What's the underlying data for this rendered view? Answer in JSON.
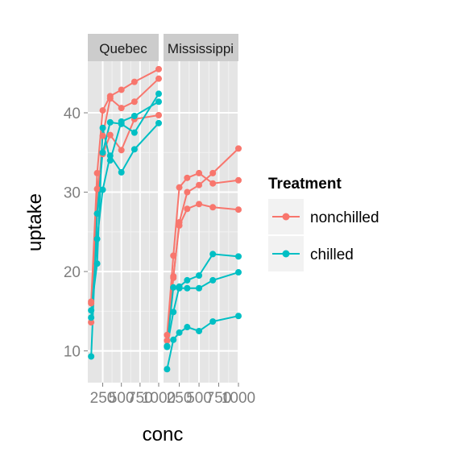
{
  "chart_data": {
    "type": "line",
    "xlabel": "conc",
    "ylabel": "uptake",
    "xlim": [
      50,
      1000
    ],
    "ylim": [
      6,
      46.5
    ],
    "x_ticks": [
      250,
      500,
      750,
      1000
    ],
    "x_tick_labels": [
      "250",
      "500",
      "750",
      "1000"
    ],
    "y_ticks": [
      10,
      20,
      30,
      40
    ],
    "y_tick_labels": [
      "10",
      "20",
      "30",
      "40"
    ],
    "legend": {
      "title": "Treatment",
      "position": "right",
      "entries": [
        {
          "label": "nonchilled",
          "color": "#F8766D"
        },
        {
          "label": "chilled",
          "color": "#00BFC4"
        }
      ]
    },
    "background": "#e5e5e5",
    "gridline_color": "#ffffff",
    "strip_color": "#cccccc",
    "x": [
      95,
      175,
      250,
      350,
      500,
      675,
      1000
    ],
    "panels": [
      {
        "strip": "Quebec",
        "series": [
          {
            "treatment": "nonchilled",
            "values": [
              16.0,
              30.4,
              34.8,
              37.2,
              35.3,
              39.2,
              39.7
            ]
          },
          {
            "treatment": "nonchilled",
            "values": [
              13.6,
              27.3,
              37.1,
              41.8,
              40.6,
              41.4,
              44.3
            ]
          },
          {
            "treatment": "nonchilled",
            "values": [
              16.2,
              32.4,
              40.3,
              42.1,
              42.9,
              43.9,
              45.5
            ]
          },
          {
            "treatment": "chilled",
            "values": [
              14.2,
              24.1,
              30.3,
              34.6,
              32.5,
              35.4,
              38.7
            ]
          },
          {
            "treatment": "chilled",
            "values": [
              9.3,
              27.3,
              35.0,
              38.8,
              38.6,
              37.5,
              42.4
            ]
          },
          {
            "treatment": "chilled",
            "values": [
              15.1,
              21.0,
              38.1,
              34.0,
              38.9,
              39.6,
              41.4
            ]
          }
        ]
      },
      {
        "strip": "Mississippi",
        "series": [
          {
            "treatment": "nonchilled",
            "values": [
              10.6,
              19.2,
              26.2,
              30.0,
              30.9,
              32.4,
              35.5
            ]
          },
          {
            "treatment": "nonchilled",
            "values": [
              12.0,
              22.0,
              30.6,
              31.8,
              32.4,
              31.1,
              31.5
            ]
          },
          {
            "treatment": "nonchilled",
            "values": [
              11.3,
              19.4,
              25.8,
              27.9,
              28.5,
              28.1,
              27.8
            ]
          },
          {
            "treatment": "chilled",
            "values": [
              10.5,
              14.9,
              18.1,
              18.9,
              19.5,
              22.2,
              21.9
            ]
          },
          {
            "treatment": "chilled",
            "values": [
              7.7,
              11.4,
              12.3,
              13.0,
              12.5,
              13.7,
              14.4
            ]
          },
          {
            "treatment": "chilled",
            "values": [
              10.6,
              18.0,
              17.9,
              17.9,
              17.9,
              18.9,
              19.9
            ]
          }
        ]
      }
    ]
  }
}
